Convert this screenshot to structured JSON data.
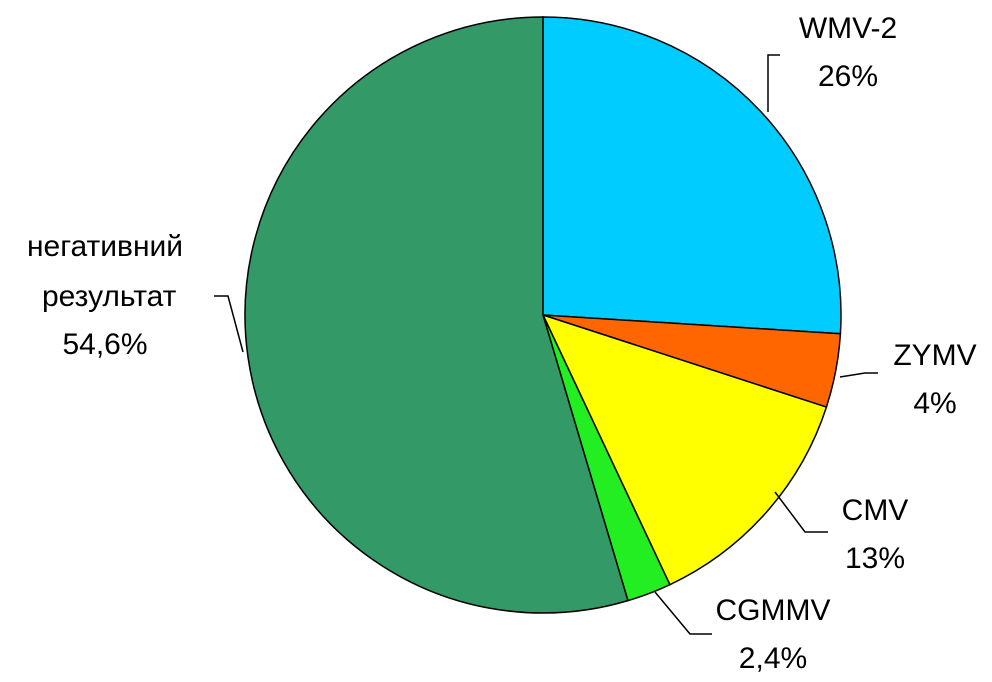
{
  "chart_data": {
    "type": "pie",
    "categories": [
      "WMV-2",
      "ZYMV",
      "CMV",
      "CGMMV",
      "негативний результат"
    ],
    "values": [
      26,
      4,
      13,
      2.4,
      54.6
    ],
    "value_labels": [
      "26%",
      "4%",
      "13%",
      "2,4%",
      "54,6%"
    ],
    "colors": [
      "#00ccff",
      "#ff6600",
      "#ffff00",
      "#22ee22",
      "#339966"
    ]
  }
}
